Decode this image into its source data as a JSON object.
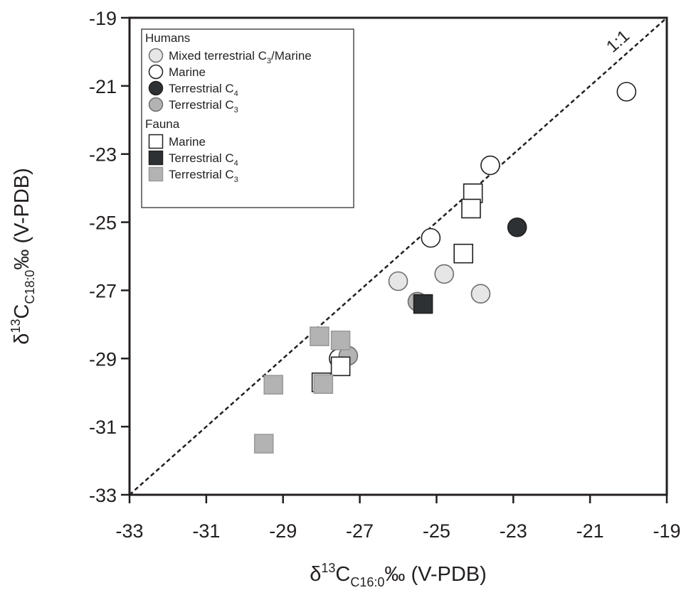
{
  "chart_data": {
    "type": "scatter",
    "title": "",
    "xlabel": {
      "main": "C",
      "sub": "C16:0",
      "suffix": "‰ (V-PDB)",
      "sup": "13",
      "prefix": "δ"
    },
    "ylabel": {
      "main": "C",
      "sub": "C18:0",
      "suffix": "‰ (V-PDB)",
      "sup": "13",
      "prefix": "δ"
    },
    "xlim": [
      -33,
      -19
    ],
    "ylim": [
      -33,
      -19
    ],
    "xticks": [
      -33,
      -31,
      -29,
      -27,
      -25,
      -23,
      -21,
      -19
    ],
    "yticks": [
      -33,
      -31,
      -29,
      -27,
      -25,
      -23,
      -21,
      -19
    ],
    "grid": false,
    "reference_line": {
      "label": "1:1",
      "style": "dashed",
      "from": [
        -33,
        -33
      ],
      "to": [
        -19,
        -19
      ]
    },
    "legend": {
      "placement": "top-left",
      "groups": [
        {
          "heading": "Humans",
          "entries": [
            {
              "name": "Mixed terrestrial C3/Marine",
              "label": "Mixed terrestrial C",
              "sub": "3",
              "after": "/Marine",
              "marker": "circle",
              "fill": "#e6e6e7",
              "stroke": "#6d6e70"
            },
            {
              "name": "Marine",
              "label": "Marine",
              "sub": "",
              "after": "",
              "marker": "circle",
              "fill": "#ffffff",
              "stroke": "#231f20"
            },
            {
              "name": "Terrestrial C4",
              "label": "Terrestrial C",
              "sub": "4",
              "after": "",
              "marker": "circle",
              "fill": "#2d3133",
              "stroke": "#231f20"
            },
            {
              "name": "Terrestrial C3",
              "label": "Terrestrial C",
              "sub": "3",
              "after": "",
              "marker": "circle",
              "fill": "#b3b3b3",
              "stroke": "#6d6e70"
            }
          ]
        },
        {
          "heading": "Fauna",
          "entries": [
            {
              "name": "Marine",
              "label": "Marine",
              "sub": "",
              "after": "",
              "marker": "square",
              "fill": "#ffffff",
              "stroke": "#231f20"
            },
            {
              "name": "Terrestrial C4",
              "label": "Terrestrial C",
              "sub": "4",
              "after": "",
              "marker": "square",
              "fill": "#2d3133",
              "stroke": "#231f20"
            },
            {
              "name": "Terrestrial C3",
              "label": "Terrestrial C",
              "sub": "3",
              "after": "",
              "marker": "square",
              "fill": "#b3b3b3",
              "stroke": "#9a9a9a"
            }
          ]
        }
      ]
    },
    "series": [
      {
        "group": "Humans",
        "name": "Mixed terrestrial C3/Marine",
        "marker": "circle",
        "fill": "#e6e6e7",
        "stroke": "#6d6e70",
        "points": [
          [
            -26.0,
            -26.73
          ],
          [
            -24.8,
            -26.52
          ],
          [
            -23.85,
            -27.1
          ]
        ]
      },
      {
        "group": "Humans",
        "name": "Marine",
        "marker": "circle",
        "fill": "#ffffff",
        "stroke": "#231f20",
        "points": [
          [
            -20.05,
            -21.17
          ],
          [
            -23.6,
            -23.33
          ],
          [
            -25.15,
            -25.46
          ],
          [
            -27.55,
            -29.0
          ]
        ]
      },
      {
        "group": "Humans",
        "name": "Terrestrial C4",
        "marker": "circle",
        "fill": "#2d3133",
        "stroke": "#231f20",
        "points": [
          [
            -22.9,
            -25.15
          ]
        ]
      },
      {
        "group": "Humans",
        "name": "Terrestrial C3",
        "marker": "circle",
        "fill": "#b3b3b3",
        "stroke": "#6d6e70",
        "points": [
          [
            -25.5,
            -27.33
          ],
          [
            -27.3,
            -28.92
          ]
        ]
      },
      {
        "group": "Fauna",
        "name": "Marine",
        "marker": "square",
        "fill": "#ffffff",
        "stroke": "#231f20",
        "points": [
          [
            -24.05,
            -24.15
          ],
          [
            -24.1,
            -24.6
          ],
          [
            -24.3,
            -25.92
          ],
          [
            -27.5,
            -29.23
          ],
          [
            -28.0,
            -29.7
          ]
        ]
      },
      {
        "group": "Fauna",
        "name": "Terrestrial C4",
        "marker": "square",
        "fill": "#2d3133",
        "stroke": "#231f20",
        "points": [
          [
            -25.35,
            -27.4
          ]
        ]
      },
      {
        "group": "Fauna",
        "name": "Terrestrial C3",
        "marker": "square",
        "fill": "#b3b3b3",
        "stroke": "#9a9a9a",
        "points": [
          [
            -28.05,
            -28.35
          ],
          [
            -27.5,
            -28.47
          ],
          [
            -29.25,
            -29.77
          ],
          [
            -27.95,
            -29.75
          ],
          [
            -29.5,
            -31.5
          ]
        ]
      }
    ]
  }
}
